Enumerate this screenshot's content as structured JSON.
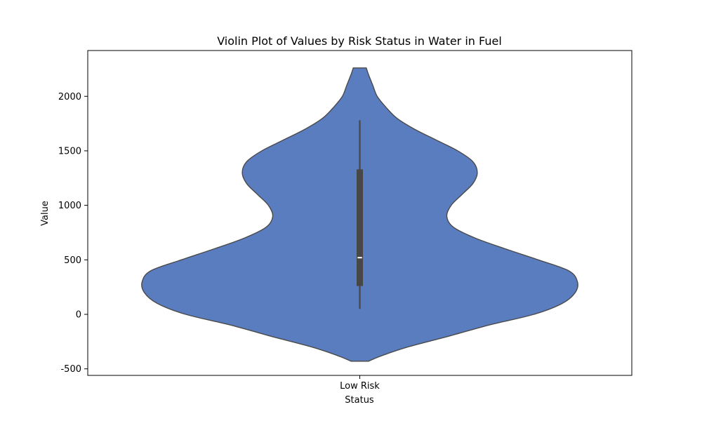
{
  "chart_data": {
    "type": "violin",
    "title": "Violin Plot of Values by Risk Status in Water in Fuel",
    "xlabel": "Status",
    "ylabel": "Value",
    "categories": [
      "Low Risk"
    ],
    "ylim": [
      -560,
      2420
    ],
    "yticks": [
      -500,
      0,
      500,
      1000,
      1500,
      2000
    ],
    "grid": false,
    "colors": {
      "violin_fill": "#5a7dc0",
      "violin_edge": "#4a4a4a",
      "box": "#474747",
      "median": "#ffffff"
    },
    "violins": [
      {
        "category": "Low Risk",
        "box": {
          "whisker_low": 50,
          "q1": 260,
          "median": 520,
          "q3": 1330,
          "whisker_high": 1780
        },
        "density": [
          {
            "y": -430,
            "w": 0.04
          },
          {
            "y": -380,
            "w": 0.1
          },
          {
            "y": -300,
            "w": 0.22
          },
          {
            "y": -200,
            "w": 0.41
          },
          {
            "y": -100,
            "w": 0.59
          },
          {
            "y": 0,
            "w": 0.8
          },
          {
            "y": 100,
            "w": 0.93
          },
          {
            "y": 200,
            "w": 0.99
          },
          {
            "y": 300,
            "w": 1.0
          },
          {
            "y": 400,
            "w": 0.96
          },
          {
            "y": 500,
            "w": 0.82
          },
          {
            "y": 600,
            "w": 0.67
          },
          {
            "y": 700,
            "w": 0.53
          },
          {
            "y": 800,
            "w": 0.43
          },
          {
            "y": 900,
            "w": 0.4
          },
          {
            "y": 1000,
            "w": 0.42
          },
          {
            "y": 1100,
            "w": 0.47
          },
          {
            "y": 1200,
            "w": 0.52
          },
          {
            "y": 1300,
            "w": 0.54
          },
          {
            "y": 1400,
            "w": 0.52
          },
          {
            "y": 1500,
            "w": 0.45
          },
          {
            "y": 1600,
            "w": 0.35
          },
          {
            "y": 1700,
            "w": 0.25
          },
          {
            "y": 1800,
            "w": 0.17
          },
          {
            "y": 1900,
            "w": 0.12
          },
          {
            "y": 2000,
            "w": 0.08
          },
          {
            "y": 2100,
            "w": 0.06
          },
          {
            "y": 2200,
            "w": 0.04
          },
          {
            "y": 2260,
            "w": 0.03
          }
        ]
      }
    ]
  }
}
